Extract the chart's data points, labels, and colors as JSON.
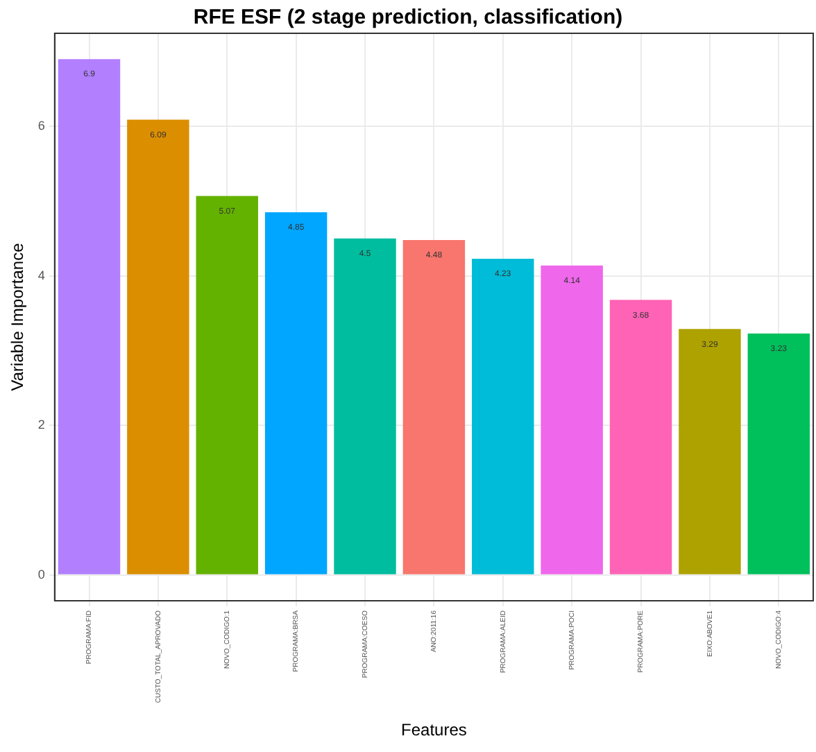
{
  "chart_data": {
    "type": "bar",
    "title": "RFE ESF (2 stage prediction, classification)",
    "xlabel": "Features",
    "ylabel": "Variable Importance",
    "categories": [
      "PROGRAMA:FID",
      "CUSTO_TOTAL_APROVADO",
      "NOVO_CODIGO:1",
      "PROGRAMA:BRSA",
      "PROGRAMA:COESO",
      "ANO:2011:16",
      "PROGRAMA:ALEID",
      "PROGRAMA:POCI",
      "PROGRAMA:PORE",
      "EIXO:ABOVE1",
      "NOVO_CODIGO:4"
    ],
    "values": [
      6.9,
      6.09,
      5.07,
      4.85,
      4.5,
      4.48,
      4.23,
      4.14,
      3.68,
      3.29,
      3.23
    ],
    "colors": [
      "#b27ffe",
      "#db8e00",
      "#64b200",
      "#00a6ff",
      "#00bd9f",
      "#f8766d",
      "#00bcd8",
      "#ef67eb",
      "#ff63b6",
      "#aea200",
      "#00c05c"
    ],
    "ylim": [
      -0.345,
      7.245
    ],
    "yticks": [
      0,
      2,
      4,
      6
    ],
    "grid": true,
    "data_labels": true
  }
}
